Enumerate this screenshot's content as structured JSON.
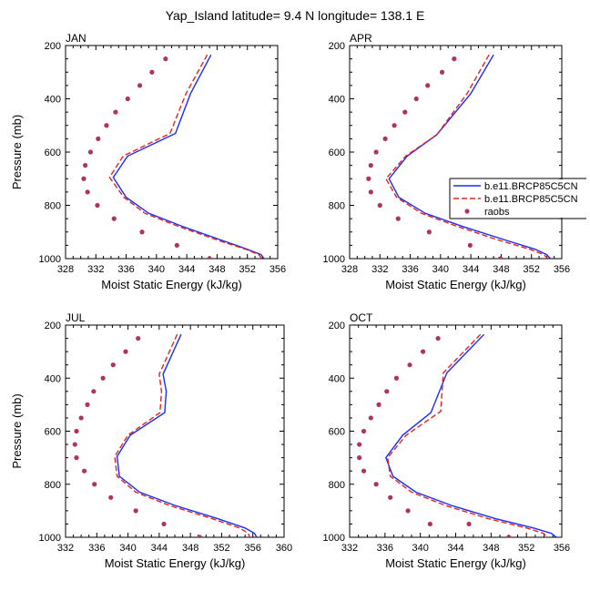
{
  "title": "Yap_Island  latitude= 9.4 N longitude= 138.1 E",
  "legend": {
    "entries": [
      {
        "label": "b.e11.BRCP85C5CN",
        "color": "#1a2bff",
        "style": "solid"
      },
      {
        "label": "b.e11.BRCP85C5CN",
        "color": "#e8231b",
        "style": "dashed"
      },
      {
        "label": "raobs",
        "color": "#b0345a",
        "style": "dots"
      }
    ]
  },
  "colors": {
    "model_solid": "#1a2bff",
    "model_dashed": "#e8231b",
    "raobs": "#b0345a"
  },
  "chart_data": [
    {
      "type": "line",
      "panel": "JAN",
      "xlabel": "Moist Static Energy (kJ/kg)",
      "ylabel": "Pressure (mb)",
      "xlim": [
        328,
        356
      ],
      "xticks": [
        328,
        332,
        336,
        340,
        344,
        348,
        352,
        356
      ],
      "ylim": [
        200,
        1000
      ],
      "yticks": [
        200,
        400,
        600,
        800,
        1000
      ],
      "y_inverted": true,
      "series": [
        {
          "name": "b.e11.BRCP85C5CN",
          "style": "solid",
          "color": "#1a2bff",
          "points": [
            [
              347.2,
              235
            ],
            [
              344.5,
              380
            ],
            [
              342.5,
              530
            ],
            [
              336.2,
              615
            ],
            [
              334.3,
              695
            ],
            [
              336.0,
              770
            ],
            [
              339.0,
              830
            ],
            [
              343.5,
              880
            ],
            [
              349.0,
              935
            ],
            [
              352.0,
              965
            ],
            [
              353.8,
              985
            ],
            [
              354.2,
              1000
            ]
          ]
        },
        {
          "name": "b.e11.BRCP85C5CN",
          "style": "dashed",
          "color": "#e8231b",
          "points": [
            [
              346.7,
              235
            ],
            [
              343.9,
              380
            ],
            [
              341.8,
              530
            ],
            [
              335.6,
              615
            ],
            [
              333.8,
              695
            ],
            [
              335.7,
              770
            ],
            [
              338.5,
              830
            ],
            [
              343.0,
              880
            ],
            [
              348.5,
              935
            ],
            [
              351.8,
              965
            ],
            [
              353.5,
              985
            ],
            [
              353.9,
              1000
            ]
          ]
        },
        {
          "name": "raobs",
          "style": "dots",
          "color": "#b0345a",
          "points": [
            [
              341.2,
              250
            ],
            [
              339.4,
              300
            ],
            [
              337.8,
              350
            ],
            [
              336.2,
              400
            ],
            [
              334.6,
              450
            ],
            [
              333.4,
              500
            ],
            [
              332.3,
              550
            ],
            [
              331.3,
              600
            ],
            [
              330.6,
              650
            ],
            [
              330.4,
              700
            ],
            [
              330.9,
              750
            ],
            [
              332.2,
              800
            ],
            [
              334.4,
              850
            ],
            [
              338.1,
              900
            ],
            [
              342.7,
              950
            ],
            [
              347.0,
              1000
            ]
          ]
        }
      ]
    },
    {
      "type": "line",
      "panel": "APR",
      "xlabel": "Moist Static Energy (kJ/kg)",
      "ylabel": "",
      "xlim": [
        328,
        356
      ],
      "xticks": [
        328,
        332,
        336,
        340,
        344,
        348,
        352,
        356
      ],
      "ylim": [
        200,
        1000
      ],
      "yticks": [
        200,
        400,
        600,
        800,
        1000
      ],
      "y_inverted": true,
      "series": [
        {
          "name": "b.e11.BRCP85C5CN",
          "style": "solid",
          "color": "#1a2bff",
          "points": [
            [
              347.0,
              235
            ],
            [
              344.0,
              380
            ],
            [
              339.5,
              535
            ],
            [
              335.6,
              615
            ],
            [
              333.2,
              700
            ],
            [
              334.5,
              770
            ],
            [
              338.0,
              830
            ],
            [
              343.0,
              880
            ],
            [
              348.5,
              930
            ],
            [
              352.5,
              965
            ],
            [
              354.0,
              985
            ],
            [
              354.5,
              1000
            ]
          ]
        },
        {
          "name": "b.e11.BRCP85C5CN",
          "style": "dashed",
          "color": "#e8231b",
          "points": [
            [
              346.4,
              235
            ],
            [
              343.5,
              380
            ],
            [
              339.5,
              535
            ],
            [
              335.4,
              615
            ],
            [
              332.8,
              700
            ],
            [
              334.2,
              770
            ],
            [
              337.5,
              830
            ],
            [
              342.3,
              880
            ],
            [
              347.6,
              930
            ],
            [
              351.8,
              965
            ],
            [
              353.6,
              985
            ],
            [
              354.2,
              1000
            ]
          ]
        },
        {
          "name": "raobs",
          "style": "dots",
          "color": "#b0345a",
          "points": [
            [
              341.8,
              250
            ],
            [
              340.2,
              300
            ],
            [
              338.3,
              350
            ],
            [
              336.8,
              400
            ],
            [
              335.3,
              450
            ],
            [
              333.9,
              500
            ],
            [
              332.7,
              550
            ],
            [
              331.5,
              600
            ],
            [
              330.8,
              650
            ],
            [
              330.5,
              700
            ],
            [
              330.8,
              750
            ],
            [
              332.0,
              800
            ],
            [
              334.4,
              850
            ],
            [
              338.5,
              900
            ],
            [
              343.9,
              950
            ],
            [
              347.9,
              1000
            ]
          ]
        }
      ]
    },
    {
      "type": "line",
      "panel": "JUL",
      "xlabel": "Moist Static Energy (kJ/kg)",
      "ylabel": "Pressure (mb)",
      "xlim": [
        332,
        360
      ],
      "xticks": [
        332,
        336,
        340,
        344,
        348,
        352,
        356,
        360
      ],
      "ylim": [
        200,
        1000
      ],
      "yticks": [
        200,
        400,
        600,
        800,
        1000
      ],
      "y_inverted": true,
      "series": [
        {
          "name": "b.e11.BRCP85C5CN",
          "style": "solid",
          "color": "#1a2bff",
          "points": [
            [
              346.8,
              235
            ],
            [
              344.5,
              385
            ],
            [
              344.9,
              450
            ],
            [
              344.7,
              530
            ],
            [
              340.3,
              615
            ],
            [
              338.6,
              695
            ],
            [
              338.9,
              770
            ],
            [
              341.5,
              830
            ],
            [
              346.0,
              880
            ],
            [
              351.5,
              930
            ],
            [
              355.0,
              965
            ],
            [
              356.2,
              985
            ],
            [
              356.5,
              1000
            ]
          ]
        },
        {
          "name": "b.e11.BRCP85C5CN",
          "style": "dashed",
          "color": "#e8231b",
          "points": [
            [
              346.3,
              235
            ],
            [
              344.0,
              385
            ],
            [
              344.3,
              450
            ],
            [
              344.1,
              530
            ],
            [
              340.0,
              615
            ],
            [
              338.3,
              695
            ],
            [
              338.6,
              770
            ],
            [
              341.0,
              830
            ],
            [
              345.3,
              880
            ],
            [
              350.8,
              930
            ],
            [
              354.3,
              965
            ],
            [
              355.4,
              985
            ],
            [
              355.6,
              1000
            ]
          ]
        },
        {
          "name": "raobs",
          "style": "dots",
          "color": "#b0345a",
          "points": [
            [
              341.3,
              250
            ],
            [
              339.7,
              300
            ],
            [
              338.1,
              350
            ],
            [
              336.8,
              400
            ],
            [
              335.6,
              450
            ],
            [
              334.8,
              500
            ],
            [
              334.0,
              550
            ],
            [
              333.4,
              600
            ],
            [
              333.2,
              650
            ],
            [
              333.4,
              700
            ],
            [
              334.4,
              750
            ],
            [
              335.7,
              800
            ],
            [
              337.8,
              850
            ],
            [
              341.0,
              900
            ],
            [
              344.6,
              950
            ],
            [
              349.2,
              1000
            ]
          ]
        }
      ]
    },
    {
      "type": "line",
      "panel": "OCT",
      "xlabel": "Moist Static Energy (kJ/kg)",
      "ylabel": "",
      "xlim": [
        332,
        356
      ],
      "xticks": [
        332,
        336,
        340,
        344,
        348,
        352,
        356
      ],
      "ylim": [
        200,
        1000
      ],
      "yticks": [
        200,
        400,
        600,
        800,
        1000
      ],
      "y_inverted": true,
      "series": [
        {
          "name": "b.e11.BRCP85C5CN",
          "style": "solid",
          "color": "#1a2bff",
          "points": [
            [
              347.2,
              235
            ],
            [
              343.0,
              380
            ],
            [
              341.2,
              530
            ],
            [
              338.0,
              615
            ],
            [
              336.1,
              700
            ],
            [
              336.9,
              770
            ],
            [
              339.5,
              830
            ],
            [
              343.5,
              880
            ],
            [
              348.5,
              930
            ],
            [
              352.8,
              965
            ],
            [
              354.8,
              985
            ],
            [
              355.4,
              1000
            ]
          ]
        },
        {
          "name": "b.e11.BRCP85C5CN",
          "style": "dashed",
          "color": "#e8231b",
          "points": [
            [
              346.8,
              235
            ],
            [
              342.6,
              380
            ],
            [
              342.3,
              525
            ],
            [
              338.4,
              615
            ],
            [
              336.3,
              700
            ],
            [
              336.6,
              770
            ],
            [
              339.0,
              830
            ],
            [
              342.8,
              880
            ],
            [
              347.7,
              930
            ],
            [
              352.0,
              965
            ],
            [
              353.9,
              985
            ],
            [
              354.4,
              1000
            ]
          ]
        },
        {
          "name": "raobs",
          "style": "dots",
          "color": "#b0345a",
          "points": [
            [
              342.0,
              250
            ],
            [
              340.3,
              300
            ],
            [
              338.8,
              350
            ],
            [
              337.3,
              400
            ],
            [
              336.2,
              450
            ],
            [
              335.3,
              500
            ],
            [
              334.4,
              550
            ],
            [
              333.6,
              600
            ],
            [
              333.1,
              650
            ],
            [
              333.1,
              700
            ],
            [
              333.6,
              750
            ],
            [
              335.0,
              800
            ],
            [
              336.6,
              850
            ],
            [
              338.6,
              900
            ],
            [
              341.1,
              950
            ],
            [
              345.5,
              950
            ],
            [
              350.0,
              1000
            ]
          ]
        }
      ]
    }
  ]
}
